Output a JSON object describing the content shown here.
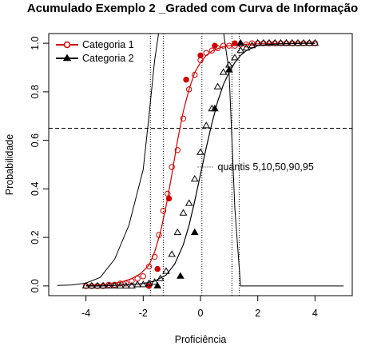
{
  "chart_data": {
    "type": "line",
    "title": "Acumulado Exemplo 2 _Graded com Curva de Informação",
    "xlabel": "Proficiência",
    "ylabel": "Probabilidade",
    "xlim": [
      -5.3,
      5.3
    ],
    "ylim": [
      -0.04,
      1.04
    ],
    "xticks": [
      -4,
      -2,
      0,
      2,
      4
    ],
    "yticks": [
      0.0,
      0.2,
      0.4,
      0.6,
      0.8,
      1.0
    ],
    "xtick_labels": [
      "-4",
      "-2",
      "0",
      "2",
      "4"
    ],
    "ytick_labels": [
      "0.0",
      "0.2",
      "0.4",
      "0.6",
      "0.8",
      "1.0"
    ],
    "legend": {
      "position": "top-left",
      "entries": [
        {
          "label": "Categoria 1",
          "color": "#cc0000",
          "marker": "circle"
        },
        {
          "label": "Categoria 2",
          "color": "#000000",
          "marker": "triangle"
        }
      ]
    },
    "hline": {
      "y": 0.65,
      "style": "dashed"
    },
    "quantile_lines": {
      "x": [
        -1.75,
        -1.3,
        0.05,
        1.1,
        1.35
      ],
      "style": "dotted",
      "label": "quantis 5,10,50,90,95",
      "label_at": {
        "x": 0.35,
        "y": 0.49
      }
    },
    "info_curve": {
      "x": [
        -5,
        -4.5,
        -4,
        -3.5,
        -3,
        -2.5,
        -2,
        -1.8,
        -1.6,
        -1.45,
        -1.3,
        -1.0,
        -0.5,
        0,
        0.4,
        0.6,
        0.8,
        1.0,
        1.2,
        1.4,
        1.6,
        2,
        2.5,
        3,
        3.5,
        4,
        4.5,
        5
      ],
      "y": [
        0.002,
        0.004,
        0.012,
        0.035,
        0.11,
        0.25,
        0.48,
        0.7,
        0.93,
        1.05,
        1.05,
        1.05,
        1.05,
        1.05,
        1.05,
        1.05,
        1.05,
        0.88,
        0.32,
        0.0,
        0.0,
        0.0,
        0.0,
        0.0,
        0.0,
        0.0,
        0.0,
        0.0
      ]
    },
    "series": [
      {
        "name": "Categoria 1",
        "color": "#cc0000",
        "curve": {
          "x": [
            -4,
            -3.6,
            -3.2,
            -2.8,
            -2.4,
            -2.1,
            -1.8,
            -1.6,
            -1.4,
            -1.2,
            -1.0,
            -0.8,
            -0.6,
            -0.4,
            -0.2,
            0,
            0.2,
            0.4,
            0.6,
            0.8,
            1.0,
            1.3,
            1.6,
            2.0,
            2.5,
            3.0,
            3.5,
            4.0
          ],
          "y": [
            0.002,
            0.004,
            0.008,
            0.015,
            0.03,
            0.05,
            0.085,
            0.14,
            0.22,
            0.33,
            0.46,
            0.6,
            0.72,
            0.81,
            0.88,
            0.92,
            0.95,
            0.968,
            0.978,
            0.986,
            0.99,
            0.994,
            0.996,
            0.998,
            0.999,
            0.999,
            1.0,
            1.0
          ]
        },
        "open_points": {
          "x": [
            -4,
            -3.8,
            -3.6,
            -3.4,
            -3.2,
            -3.0,
            -2.8,
            -2.6,
            -2.4,
            -2.2,
            -2.0,
            -1.8,
            -1.6,
            -1.45,
            -1.3,
            -1.15,
            -1.0,
            -0.8,
            -0.6,
            -0.4,
            -0.2,
            0.0,
            0.2,
            0.4,
            0.6,
            0.8,
            1.0,
            1.2,
            1.4,
            1.6,
            1.8,
            2.0,
            2.2,
            2.4,
            2.6,
            2.8,
            3.0,
            3.2,
            3.4,
            3.6,
            3.8,
            4.0
          ],
          "y": [
            0.0,
            0.0,
            0.0,
            0.0,
            0.005,
            0.005,
            0.01,
            0.01,
            0.02,
            0.03,
            0.04,
            0.08,
            0.12,
            0.21,
            0.31,
            0.38,
            0.49,
            0.56,
            0.69,
            0.81,
            0.87,
            0.93,
            0.96,
            0.97,
            0.98,
            0.99,
            0.99,
            0.99,
            0.995,
            0.995,
            1.0,
            1.0,
            1.0,
            1.0,
            1.0,
            1.0,
            1.0,
            1.0,
            1.0,
            1.0,
            1.0,
            1.0
          ]
        },
        "filled_points": {
          "x": [
            -1.8,
            -1.5,
            -1.1,
            -0.5,
            0.0,
            0.5,
            1.2
          ],
          "y": [
            0.0,
            0.07,
            0.36,
            0.85,
            0.95,
            0.99,
            1.0
          ]
        }
      },
      {
        "name": "Categoria 2",
        "color": "#000000",
        "curve": {
          "x": [
            -4,
            -3.5,
            -3.0,
            -2.5,
            -2.0,
            -1.6,
            -1.2,
            -0.9,
            -0.6,
            -0.4,
            -0.2,
            0,
            0.2,
            0.4,
            0.6,
            0.8,
            1.0,
            1.2,
            1.4,
            1.6,
            1.8,
            2.0,
            2.4,
            2.8,
            3.2,
            3.6,
            4.0
          ],
          "y": [
            0.0,
            0.0,
            0.002,
            0.005,
            0.01,
            0.02,
            0.045,
            0.09,
            0.17,
            0.25,
            0.35,
            0.46,
            0.57,
            0.67,
            0.76,
            0.83,
            0.88,
            0.92,
            0.95,
            0.97,
            0.98,
            0.99,
            0.995,
            0.998,
            0.999,
            1.0,
            1.0
          ]
        },
        "open_points": {
          "x": [
            -4,
            -3.8,
            -3.6,
            -3.4,
            -3.2,
            -3.0,
            -2.8,
            -2.6,
            -2.4,
            -2.2,
            -2.0,
            -1.8,
            -1.6,
            -1.4,
            -1.2,
            -1.0,
            -0.8,
            -0.6,
            -0.4,
            -0.2,
            0.0,
            0.2,
            0.4,
            0.6,
            0.8,
            1.0,
            1.2,
            1.4,
            1.6,
            1.8,
            2.0,
            2.2,
            2.4,
            2.6,
            2.8,
            3.0,
            3.2,
            3.4,
            3.6,
            3.8,
            4.0
          ],
          "y": [
            0.0,
            0.0,
            0.0,
            0.0,
            0.0,
            0.0,
            0.0,
            0.0,
            0.0,
            0.005,
            0.005,
            0.01,
            0.015,
            0.03,
            0.06,
            0.13,
            0.22,
            0.3,
            0.34,
            0.44,
            0.55,
            0.66,
            0.73,
            0.82,
            0.88,
            0.91,
            0.94,
            0.97,
            0.98,
            0.99,
            1.0,
            1.0,
            1.0,
            1.0,
            1.0,
            1.0,
            1.0,
            1.0,
            1.0,
            1.0,
            1.0
          ]
        },
        "filled_points": {
          "x": [
            -1.5,
            -0.7,
            -0.2,
            0.5,
            1.0,
            1.4
          ],
          "y": [
            0.0,
            0.04,
            0.22,
            0.73,
            0.89,
            1.0
          ]
        }
      }
    ]
  }
}
